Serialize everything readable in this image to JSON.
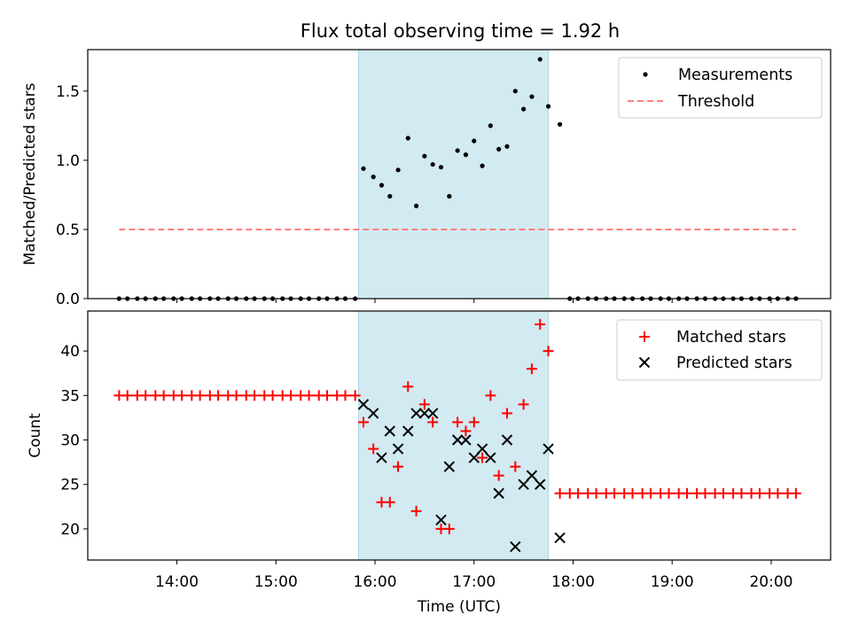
{
  "chart_data": [
    {
      "type": "scatter",
      "title": "Flux total observing time = 1.92 h",
      "xlabel": "",
      "ylabel": "Matched/Predicted stars",
      "ylim": [
        0,
        1.8
      ],
      "yticks": [
        "0.0",
        "0.5",
        "1.0",
        "1.5"
      ],
      "ytick_values": [
        0,
        0.5,
        1.0,
        1.5
      ],
      "xlim_hours": [
        13.1,
        20.6
      ],
      "shaded_span": [
        "15:50",
        "17:45"
      ],
      "legend_position": "upper right",
      "colors": {
        "measurements": "#000000",
        "threshold": "#ff7f7f",
        "span": "#add8e6"
      },
      "series": [
        {
          "name": "Measurements",
          "kind": "scatter",
          "x": [
            "13:25",
            "13:30",
            "13:36",
            "13:41",
            "13:47",
            "13:52",
            "13:58",
            "14:03",
            "14:09",
            "14:14",
            "14:20",
            "14:25",
            "14:31",
            "14:36",
            "14:42",
            "14:47",
            "14:53",
            "14:58",
            "15:04",
            "15:09",
            "15:15",
            "15:20",
            "15:26",
            "15:31",
            "15:37",
            "15:42",
            "15:48",
            "15:53",
            "15:59",
            "16:04",
            "16:09",
            "16:14",
            "16:20",
            "16:25",
            "16:30",
            "16:35",
            "16:40",
            "16:45",
            "16:50",
            "16:55",
            "17:00",
            "17:05",
            "17:10",
            "17:15",
            "17:20",
            "17:25",
            "17:30",
            "17:35",
            "17:40",
            "17:45",
            "17:52",
            "17:58",
            "18:03",
            "18:09",
            "18:14",
            "18:20",
            "18:25",
            "18:31",
            "18:36",
            "18:42",
            "18:47",
            "18:53",
            "18:58",
            "19:04",
            "19:09",
            "19:15",
            "19:20",
            "19:26",
            "19:31",
            "19:37",
            "19:42",
            "19:48",
            "19:53",
            "19:59",
            "20:04",
            "20:10",
            "20:15"
          ],
          "y": [
            0,
            0,
            0,
            0,
            0,
            0,
            0,
            0,
            0,
            0,
            0,
            0,
            0,
            0,
            0,
            0,
            0,
            0,
            0,
            0,
            0,
            0,
            0,
            0,
            0,
            0,
            0,
            0.94,
            0.88,
            0.82,
            0.74,
            0.93,
            1.16,
            0.67,
            1.03,
            0.97,
            0.95,
            0.74,
            1.07,
            1.04,
            1.14,
            0.96,
            1.25,
            1.08,
            1.1,
            1.5,
            1.37,
            1.46,
            1.73,
            1.39,
            1.26,
            0,
            0,
            0,
            0,
            0,
            0,
            0,
            0,
            0,
            0,
            0,
            0,
            0,
            0,
            0,
            0,
            0,
            0,
            0,
            0,
            0,
            0,
            0,
            0,
            0,
            0
          ]
        },
        {
          "name": "Threshold",
          "kind": "dashed-line",
          "x": [
            "13:25",
            "20:15"
          ],
          "y": [
            0.5,
            0.5
          ]
        }
      ]
    },
    {
      "type": "scatter",
      "title": "",
      "xlabel": "Time (UTC)",
      "ylabel": "Count",
      "ylim": [
        16.5,
        44.5
      ],
      "yticks": [
        "20",
        "25",
        "30",
        "35",
        "40"
      ],
      "ytick_values": [
        20,
        25,
        30,
        35,
        40
      ],
      "xticks": [
        "14:00",
        "15:00",
        "16:00",
        "17:00",
        "18:00",
        "19:00",
        "20:00"
      ],
      "xtick_hours": [
        14,
        15,
        16,
        17,
        18,
        19,
        20
      ],
      "xlim_hours": [
        13.1,
        20.6
      ],
      "shaded_span": [
        "15:50",
        "17:45"
      ],
      "legend_position": "upper right",
      "colors": {
        "matched": "#ff0000",
        "predicted": "#000000",
        "span": "#add8e6"
      },
      "series": [
        {
          "name": "Matched stars",
          "marker": "+",
          "x": [
            "13:25",
            "13:30",
            "13:36",
            "13:41",
            "13:47",
            "13:52",
            "13:58",
            "14:03",
            "14:09",
            "14:14",
            "14:20",
            "14:25",
            "14:31",
            "14:36",
            "14:42",
            "14:47",
            "14:53",
            "14:58",
            "15:04",
            "15:09",
            "15:15",
            "15:20",
            "15:26",
            "15:31",
            "15:37",
            "15:42",
            "15:48",
            "15:53",
            "15:59",
            "16:04",
            "16:09",
            "16:14",
            "16:20",
            "16:25",
            "16:30",
            "16:35",
            "16:40",
            "16:45",
            "16:50",
            "16:55",
            "17:00",
            "17:05",
            "17:10",
            "17:15",
            "17:20",
            "17:25",
            "17:30",
            "17:35",
            "17:40",
            "17:45",
            "17:52",
            "17:58",
            "18:03",
            "18:09",
            "18:14",
            "18:20",
            "18:25",
            "18:31",
            "18:36",
            "18:42",
            "18:47",
            "18:53",
            "18:58",
            "19:04",
            "19:09",
            "19:15",
            "19:20",
            "19:26",
            "19:31",
            "19:37",
            "19:42",
            "19:48",
            "19:53",
            "19:59",
            "20:04",
            "20:10",
            "20:15"
          ],
          "y": [
            35,
            35,
            35,
            35,
            35,
            35,
            35,
            35,
            35,
            35,
            35,
            35,
            35,
            35,
            35,
            35,
            35,
            35,
            35,
            35,
            35,
            35,
            35,
            35,
            35,
            35,
            35,
            32,
            29,
            23,
            23,
            27,
            36,
            22,
            34,
            32,
            20,
            20,
            32,
            31,
            32,
            28,
            35,
            26,
            33,
            27,
            34,
            38,
            43,
            40,
            24,
            24,
            24,
            24,
            24,
            24,
            24,
            24,
            24,
            24,
            24,
            24,
            24,
            24,
            24,
            24,
            24,
            24,
            24,
            24,
            24,
            24,
            24,
            24,
            24,
            24,
            24
          ]
        },
        {
          "name": "Predicted stars",
          "marker": "x",
          "x": [
            "15:53",
            "15:59",
            "16:04",
            "16:09",
            "16:14",
            "16:20",
            "16:25",
            "16:30",
            "16:35",
            "16:40",
            "16:45",
            "16:50",
            "16:55",
            "17:00",
            "17:05",
            "17:10",
            "17:15",
            "17:20",
            "17:25",
            "17:30",
            "17:35",
            "17:40",
            "17:45",
            "17:52"
          ],
          "y": [
            34,
            33,
            28,
            31,
            29,
            31,
            33,
            33,
            33,
            21,
            27,
            30,
            30,
            28,
            29,
            28,
            24,
            30,
            18,
            25,
            26,
            25,
            29,
            19
          ]
        }
      ]
    }
  ]
}
